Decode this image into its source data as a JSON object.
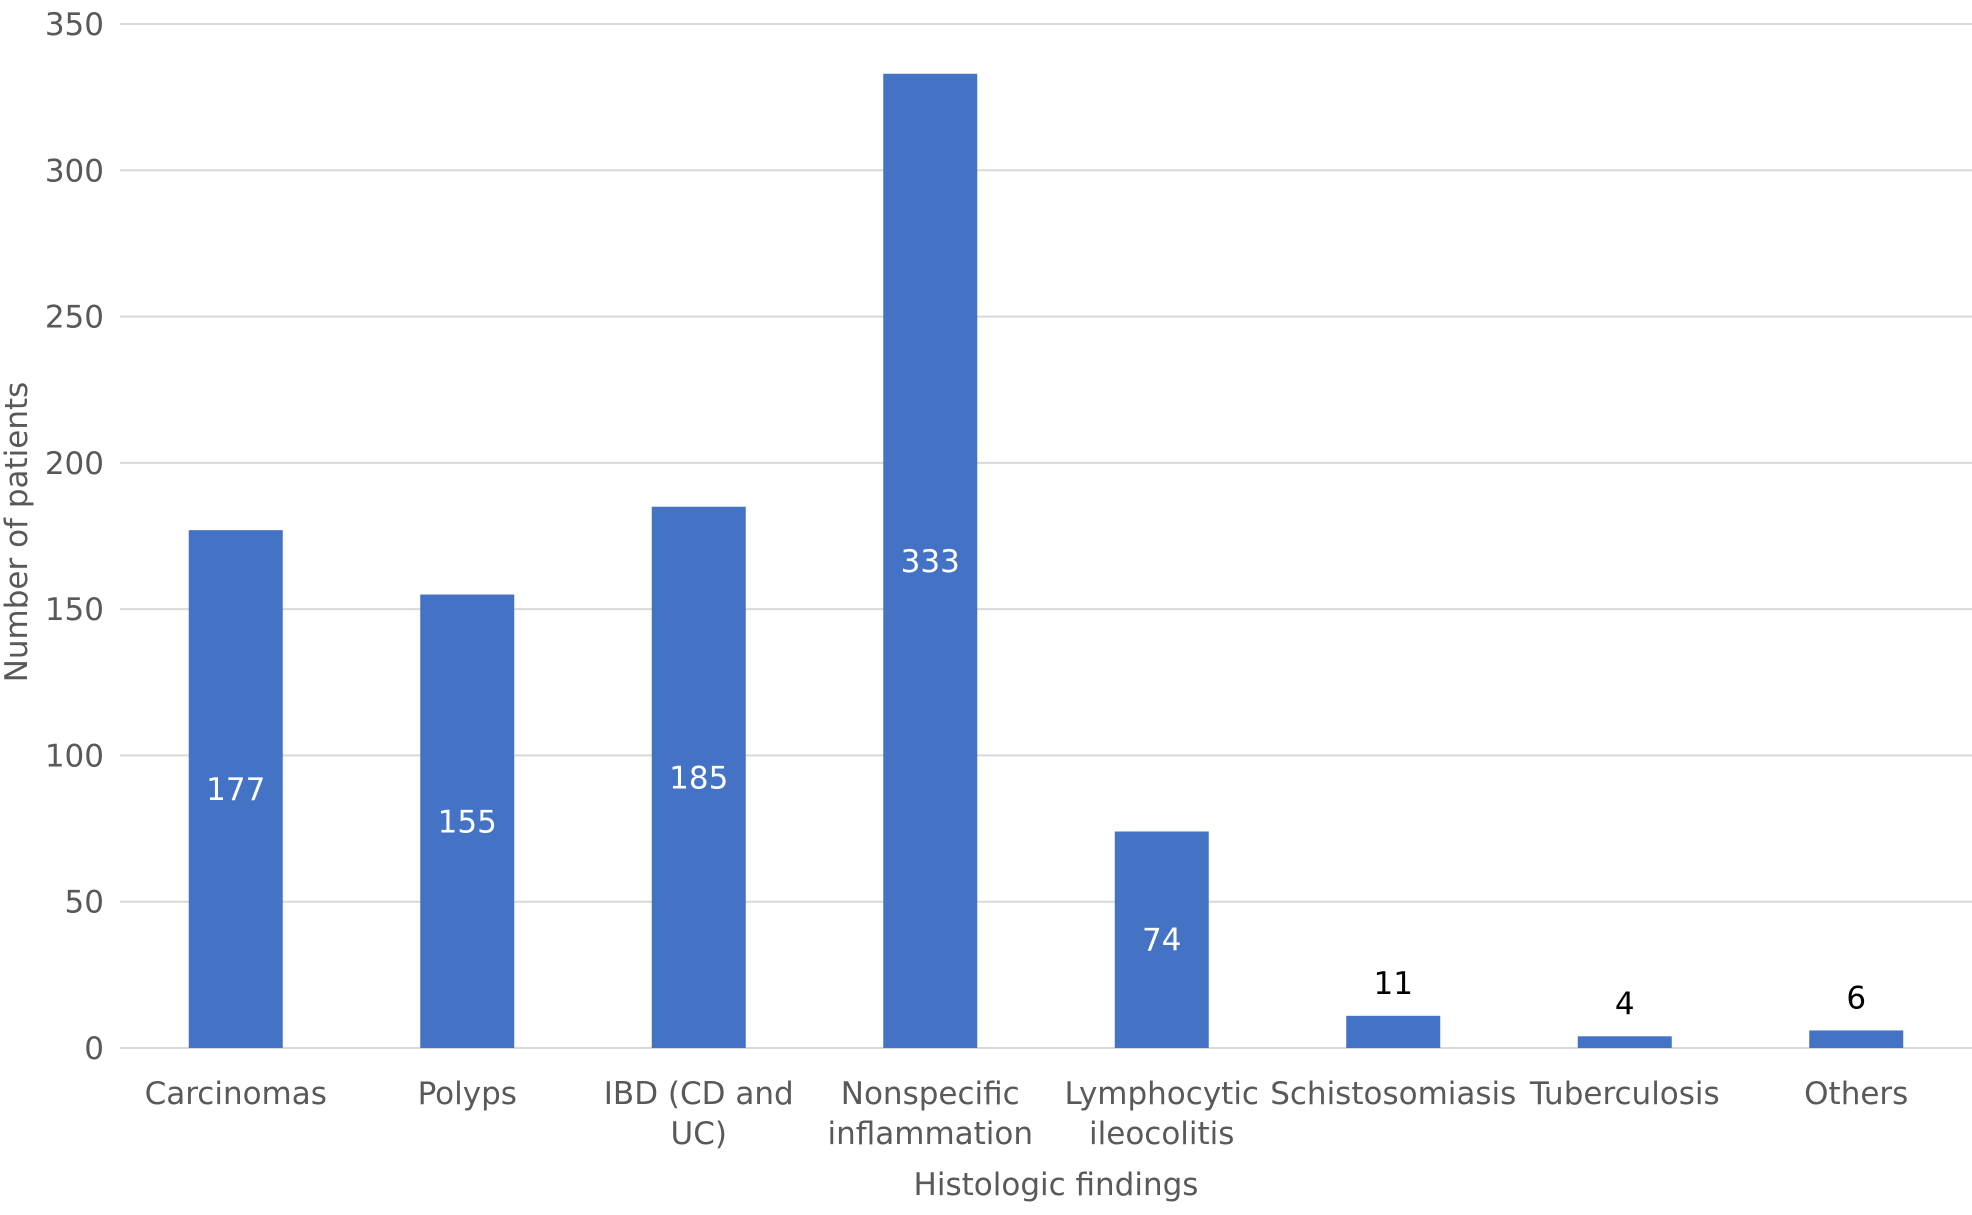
{
  "chart_data": {
    "type": "bar",
    "title": "",
    "xlabel": "Histologic findings",
    "ylabel": "Number of patients",
    "ylim": [
      0,
      350
    ],
    "yticks": [
      0,
      50,
      100,
      150,
      200,
      250,
      300,
      350
    ],
    "grid": true,
    "legend": "none",
    "categories": [
      [
        "Carcinomas"
      ],
      [
        "Polyps"
      ],
      [
        "IBD (CD and",
        "UC)"
      ],
      [
        "Nonspecific",
        "inflammation"
      ],
      [
        "Lymphocytic",
        "ileocolitis"
      ],
      [
        "Schistosomiasis"
      ],
      [
        "Tuberculosis"
      ],
      [
        "Others"
      ]
    ],
    "values": [
      177,
      155,
      185,
      333,
      74,
      11,
      4,
      6
    ],
    "data_labels": [
      "177",
      "155",
      "185",
      "333",
      "74",
      "11",
      "4",
      "6"
    ],
    "colors": {
      "bar": "#4472C4",
      "grid": "#D9D9D9",
      "axis": "#D9D9D9",
      "inside_label": "#FFFFFF",
      "outside_label": "#000000"
    }
  }
}
